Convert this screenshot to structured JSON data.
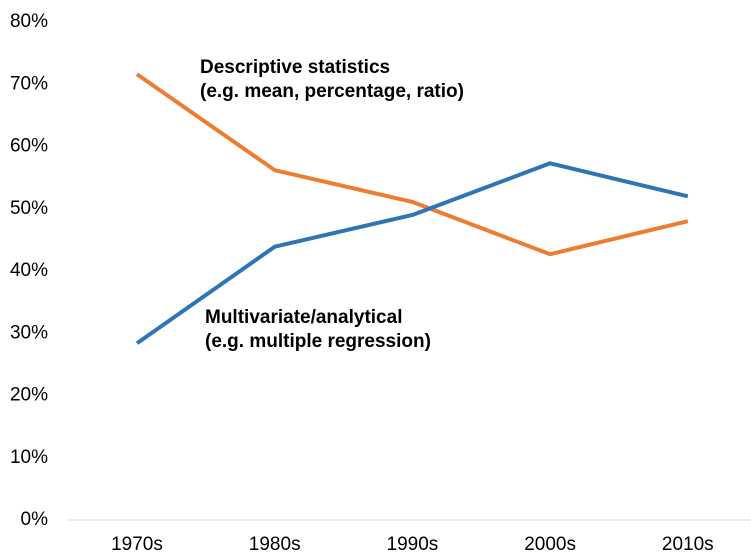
{
  "chart_data": {
    "type": "line",
    "categories": [
      "1970s",
      "1980s",
      "1990s",
      "2000s",
      "2010s"
    ],
    "series": [
      {
        "name": "Descriptive statistics",
        "color": "#ED7D31",
        "values": [
          71.6,
          56.2,
          51.1,
          42.7,
          48.0
        ]
      },
      {
        "name": "Multivariate/analytical",
        "color": "#2E75B6",
        "values": [
          28.4,
          43.9,
          49.0,
          57.3,
          52.0
        ]
      }
    ],
    "annotations": [
      "(e.g. mean, percentage, ratio)",
      "(e.g. multiple regression)"
    ],
    "ylim": [
      0,
      80
    ],
    "yticks": [
      {
        "value": 0,
        "label": "0%"
      },
      {
        "value": 10,
        "label": "10%"
      },
      {
        "value": 20,
        "label": "20%"
      },
      {
        "value": 30,
        "label": "30%"
      },
      {
        "value": 40,
        "label": "40%"
      },
      {
        "value": 50,
        "label": "50%"
      },
      {
        "value": 60,
        "label": "60%"
      },
      {
        "value": 70,
        "label": "70%"
      },
      {
        "value": 80,
        "label": "80%"
      }
    ],
    "grid": false
  }
}
